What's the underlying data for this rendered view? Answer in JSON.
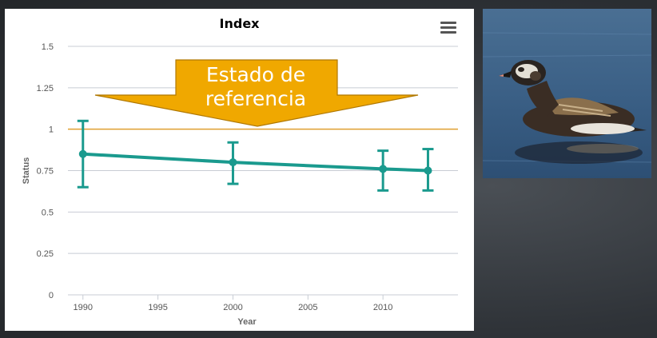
{
  "chart_data": {
    "type": "line",
    "title": "Index",
    "xlabel": "Year",
    "ylabel": "Status",
    "xlim": [
      1989,
      2015
    ],
    "ylim": [
      0,
      1.5
    ],
    "x_ticks": [
      1990,
      1995,
      2000,
      2005,
      2010
    ],
    "x_tick_labels": [
      "1990",
      "1995",
      "2000",
      "2005",
      "2010"
    ],
    "y_ticks": [
      0,
      0.25,
      0.5,
      0.75,
      1,
      1.25,
      1.5
    ],
    "y_tick_labels": [
      "0",
      "0.25",
      "0.5",
      "0.75",
      "1",
      "1.25",
      "1.5"
    ],
    "grid": true,
    "reference_line": {
      "value": 1,
      "color": "#e0a030"
    },
    "series": [
      {
        "color": "#1a9a8e",
        "points": [
          {
            "x": 1990,
            "y": 0.85,
            "low": 0.65,
            "high": 1.05
          },
          {
            "x": 2000,
            "y": 0.8,
            "low": 0.67,
            "high": 0.92
          },
          {
            "x": 2010,
            "y": 0.76,
            "low": 0.63,
            "high": 0.87
          },
          {
            "x": 2013,
            "y": 0.75,
            "low": 0.63,
            "high": 0.88
          }
        ]
      }
    ],
    "annotation": {
      "lines": [
        "Estado de",
        "referencia"
      ],
      "fill": "#f0a800",
      "stroke": "#b07800"
    }
  },
  "menu_icon": "hamburger-menu-icon",
  "image": {
    "subject": "duck-photo"
  }
}
